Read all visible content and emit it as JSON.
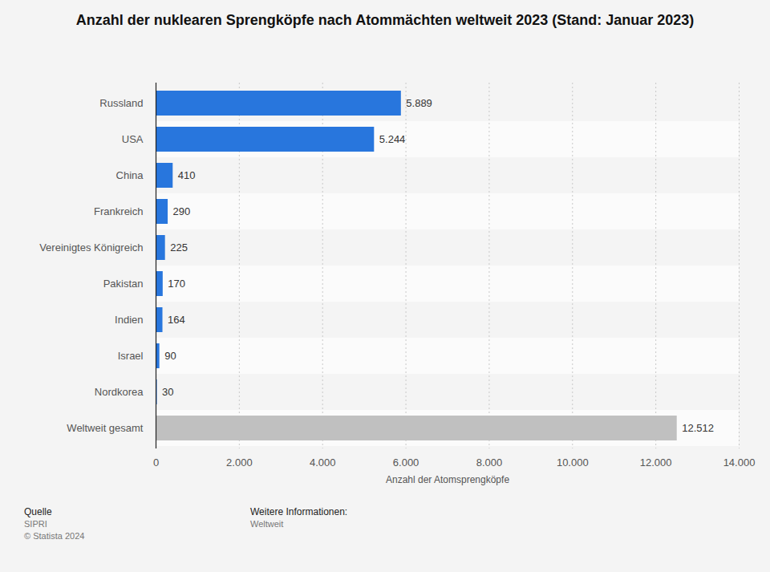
{
  "chart_data": {
    "type": "bar",
    "orientation": "horizontal",
    "title": "Anzahl der nuklearen Sprengköpfe nach Atommächten weltweit 2023 (Stand: Januar 2023)",
    "categories": [
      "Russland",
      "USA",
      "China",
      "Frankreich",
      "Vereinigtes Königreich",
      "Pakistan",
      "Indien",
      "Israel",
      "Nordkorea",
      "Weltweit gesamt"
    ],
    "values": [
      5889,
      5244,
      410,
      290,
      225,
      170,
      164,
      90,
      30,
      12512
    ],
    "value_labels": [
      "5.889",
      "5.244",
      "410",
      "290",
      "225",
      "170",
      "164",
      "90",
      "30",
      "12.512"
    ],
    "colors": [
      "#2876dd",
      "#2876dd",
      "#2876dd",
      "#2876dd",
      "#2876dd",
      "#2876dd",
      "#2876dd",
      "#2876dd",
      "#2876dd",
      "#c0c0c0"
    ],
    "xlabel": "Anzahl der Atomsprengköpfe",
    "xlim": [
      0,
      14000
    ],
    "xticks": [
      0,
      {
        "value": 2000,
        "label": "2.000"
      },
      {
        "value": 4000,
        "label": "4.000"
      },
      {
        "value": 6000,
        "label": "6.000"
      },
      {
        "value": 8000,
        "label": "8.000"
      },
      {
        "value": 10000,
        "label": "10.000"
      },
      {
        "value": 12000,
        "label": "12.000"
      },
      {
        "value": 14000,
        "label": "14.000"
      }
    ],
    "grid": true,
    "data_labels": true,
    "source": {
      "label": "Quelle",
      "text": "SIPRI",
      "copyright": "© Statista 2024"
    },
    "info": {
      "label": "Weitere Informationen:",
      "text": "Weltweit"
    }
  }
}
